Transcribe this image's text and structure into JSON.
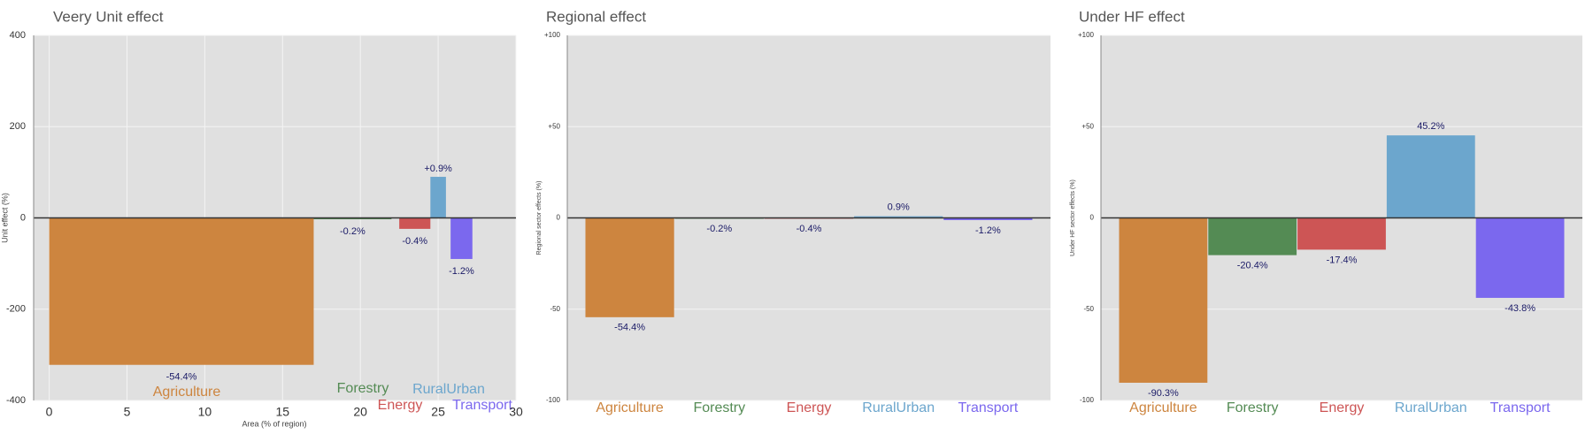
{
  "colors": {
    "panel_bg": "#e0e0e0",
    "grid": "#f4f4f4",
    "zero_line": "#333333",
    "value_label": "#1a1a66",
    "title": "#555555"
  },
  "chart_data": [
    {
      "type": "bar",
      "title": "Veery Unit effect",
      "xlabel": "Area (% of region)",
      "ylabel": "Unit effect (%)",
      "ylim": [
        -400,
        400
      ],
      "xlim": [
        -1,
        30
      ],
      "yticks": [
        "400",
        "200",
        "0",
        "-200",
        "-400"
      ],
      "ytick_values": [
        400,
        200,
        0,
        -200,
        -400
      ],
      "xticks": [
        "0",
        "5",
        "10",
        "15",
        "20",
        "25",
        "30"
      ],
      "xtick_values": [
        0,
        5,
        10,
        15,
        20,
        25,
        30
      ],
      "grid": true,
      "variable_width": true,
      "bars": [
        {
          "category": "Agriculture",
          "color": "#cd853f",
          "x_start": 0,
          "x_end": 17,
          "value": -322,
          "label": "-54.4%"
        },
        {
          "category": "Forestry",
          "color": "#548b54",
          "x_start": 17,
          "x_end": 22,
          "value": -3,
          "label": "-0.2%"
        },
        {
          "category": "Energy",
          "color": "#cd5555",
          "x_start": 22.5,
          "x_end": 24.5,
          "value": -24,
          "label": "-0.4%"
        },
        {
          "category": "RuralUrban",
          "color": "#6ca6cd",
          "x_start": 24.5,
          "x_end": 25.5,
          "value": 90,
          "label": "+0.9%"
        },
        {
          "category": "Transport",
          "color": "#7b68ee",
          "x_start": 25.8,
          "x_end": 27.2,
          "value": -90,
          "label": "-1.2%"
        }
      ]
    },
    {
      "type": "bar",
      "title": "Regional effect",
      "xlabel": "",
      "ylabel": "Regional sector effects (%)",
      "ylim": [
        -100,
        100
      ],
      "yticks": [
        "+100",
        "+50",
        "0",
        "-50",
        "-100"
      ],
      "ytick_values": [
        100,
        50,
        0,
        -50,
        -100
      ],
      "grid": true,
      "categories": [
        "Agriculture",
        "Forestry",
        "Energy",
        "RuralUrban",
        "Transport"
      ],
      "category_colors": [
        "#cd853f",
        "#548b54",
        "#cd5555",
        "#6ca6cd",
        "#7b68ee"
      ],
      "values": [
        -54.4,
        -0.2,
        -0.4,
        0.9,
        -1.2
      ],
      "value_labels": [
        "-54.4%",
        "-0.2%",
        "-0.4%",
        "0.9%",
        "-1.2%"
      ]
    },
    {
      "type": "bar",
      "title": "Under HF effect",
      "xlabel": "",
      "ylabel": "Under HF sector effects (%)",
      "ylim": [
        -100,
        100
      ],
      "yticks": [
        "+100",
        "+50",
        "0",
        "-50",
        "-100"
      ],
      "ytick_values": [
        100,
        50,
        0,
        -50,
        -100
      ],
      "grid": true,
      "categories": [
        "Agriculture",
        "Forestry",
        "Energy",
        "RuralUrban",
        "Transport"
      ],
      "category_colors": [
        "#cd853f",
        "#548b54",
        "#cd5555",
        "#6ca6cd",
        "#7b68ee"
      ],
      "values": [
        -90.3,
        -20.4,
        -17.4,
        45.2,
        -43.8
      ],
      "value_labels": [
        "-90.3%",
        "-20.4%",
        "-17.4%",
        "45.2%",
        "-43.8%"
      ]
    }
  ]
}
